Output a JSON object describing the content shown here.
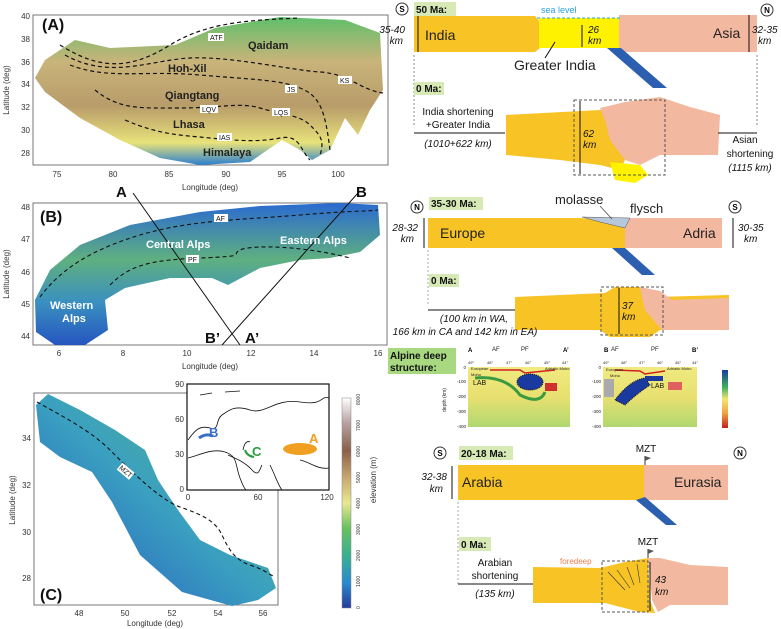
{
  "panel_a": {
    "label": "(A)",
    "xlabel": "Longitude (deg)",
    "ylabel": "Latitude (deg)",
    "xticks": [
      "75",
      "80",
      "85",
      "90",
      "95",
      "100"
    ],
    "yticks": [
      "40",
      "38",
      "36",
      "34",
      "32",
      "30",
      "28"
    ],
    "regions": [
      "Qaidam",
      "Hoh-Xil",
      "Qiangtang",
      "Lhasa",
      "Himalaya"
    ],
    "faults": [
      "ATF",
      "KS",
      "JS",
      "LQV",
      "LQS",
      "IAS"
    ]
  },
  "panel_b": {
    "label": "(B)",
    "xlabel": "Longitude (deg)",
    "ylabel": "Latitude (deg)",
    "xticks": [
      "6",
      "8",
      "10",
      "12",
      "14",
      "16"
    ],
    "yticks": [
      "48",
      "47",
      "46",
      "45",
      "44"
    ],
    "regions": [
      "Central Alps",
      "Eastern Alps",
      "Western",
      "Alps"
    ],
    "faults": [
      "AF",
      "PF"
    ],
    "profiles": [
      "A",
      "B",
      "B’",
      "A’"
    ]
  },
  "panel_c": {
    "label": "(C)",
    "xlabel": "Longitude (deg)",
    "ylabel": "Latitude (deg)",
    "xticks": [
      "48",
      "50",
      "52",
      "54",
      "56"
    ],
    "yticks": [
      "34",
      "32",
      "30",
      "28"
    ],
    "faults": [
      "MZT"
    ]
  },
  "inset": {
    "xticks": [
      "0",
      "60",
      "120"
    ],
    "yticks": [
      "90",
      "60",
      "30",
      "0"
    ],
    "labels": [
      "A",
      "B",
      "C"
    ],
    "colors": {
      "A": "#f0a020",
      "B": "#3a6fc8",
      "C": "#2a9a3a"
    }
  },
  "colorbar": {
    "label": "elevation (m)",
    "ticks": [
      "8000",
      "7000",
      "6000",
      "5000",
      "4000",
      "3000",
      "2000",
      "1000",
      "0"
    ]
  },
  "himalaya": {
    "south": "S",
    "north": "N",
    "age_then": "50 Ma:",
    "age_now": "0 Ma:",
    "sea_level": "sea level",
    "india": "India",
    "asia": "Asia",
    "greater_india": "Greater India",
    "thick_india": [
      "35-40",
      "km"
    ],
    "thick_asia": [
      "32-35",
      "km"
    ],
    "thick_gi": [
      "26",
      "km"
    ],
    "thick_now": [
      "62",
      "km"
    ],
    "left_text": [
      "India shortening",
      "+Greater India",
      "(1010+622 km)"
    ],
    "right_text": [
      "Asian",
      "shortening",
      "(1115 km)"
    ]
  },
  "alps": {
    "north": "N",
    "south": "S",
    "age_then": "35-30 Ma:",
    "age_now": "0 Ma:",
    "europe": "Europe",
    "adria": "Adria",
    "molasse": "molasse",
    "flysch": "flysch",
    "thick_europe": [
      "28-32",
      "km"
    ],
    "thick_adria": [
      "30-35",
      "km"
    ],
    "thick_now": [
      "37",
      "km"
    ],
    "shortening": [
      "(100 km in WA,",
      "166 km in CA and 142 km in EA)"
    ]
  },
  "deep": {
    "title": [
      "Alpine deep",
      "structure:"
    ],
    "ylabel": "depth (km)",
    "yticks": [
      "0",
      "-100",
      "-200",
      "-300",
      "-400"
    ],
    "section_a": {
      "ends": [
        "A",
        "A’"
      ],
      "faults": [
        "AF",
        "PF"
      ],
      "lat": [
        "49°",
        "48°",
        "47°",
        "46°",
        "45°",
        "44°"
      ],
      "moho": [
        "European",
        "Moho",
        "Adriatic Moho"
      ],
      "lab": "LAB"
    },
    "section_b": {
      "ends": [
        "B",
        "B’"
      ],
      "faults": [
        "AF",
        "PF"
      ],
      "lat": [
        "49°",
        "48°",
        "47°",
        "46°",
        "45°",
        "44°"
      ],
      "moho": [
        "European",
        "Moho",
        "Adriatic Moho"
      ],
      "lab": "LAB"
    }
  },
  "zagros": {
    "south": "S",
    "north": "N",
    "age_then": "20-18 Ma:",
    "age_now": "0 Ma:",
    "arabia": "Arabia",
    "eurasia": "Eurasia",
    "mzt": "MZT",
    "foredeep": "foredeep",
    "thick_arabia": [
      "32-38",
      "km"
    ],
    "thick_now": [
      "43",
      "km"
    ],
    "shortening": [
      "Arabian",
      "shortening",
      "(135 km)"
    ]
  },
  "colors": {
    "lower_plate": "#f7c325",
    "upper_plate": "#f2b9a0",
    "greater_india": "#fff200",
    "slab": "#2c5fb0",
    "sea_level": "#29a3e0",
    "age_bg": "#d7eab6",
    "foredeep": "#f08050"
  }
}
